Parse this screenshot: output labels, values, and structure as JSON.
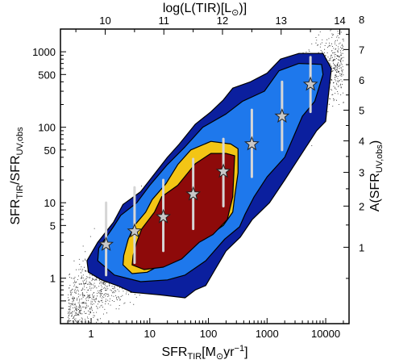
{
  "chart_data": {
    "type": "scatter",
    "xlabel": {
      "main": "SFR",
      "sub": "TIR",
      "rest": "[M",
      "sun_sub": "⊙",
      "unit": "yr",
      "sup": "−1",
      "close": "]"
    },
    "ylabel": {
      "main": "SFR",
      "sub1": "TIR",
      "mid": "/SFR",
      "sub2": "UV,obs"
    },
    "x2label": {
      "pre": "log(L(TIR)[L",
      "sun_sub": "⊙",
      "post": ")]"
    },
    "y2label": {
      "pre": "A(SFR",
      "sub": "UV,obs",
      "post": ")"
    },
    "x_scale": "log",
    "y_scale": "log",
    "xlim": [
      0.3,
      25000
    ],
    "ylim": [
      0.25,
      2000
    ],
    "x_ticks": [
      1,
      10,
      100,
      1000,
      10000
    ],
    "x_tick_labels": [
      "1",
      "10",
      "100",
      "1000",
      "10000"
    ],
    "y_ticks": [
      1,
      5,
      10,
      50,
      100,
      500,
      1000
    ],
    "y_tick_labels": [
      "1",
      "5",
      "10",
      "50",
      "100",
      "500",
      "1000"
    ],
    "x2_ticks": [
      10,
      11,
      12,
      13,
      14
    ],
    "x2_tick_labels": [
      "10",
      "11",
      "12",
      "13",
      "14"
    ],
    "y2_ticks": [
      1,
      2,
      3,
      4,
      5,
      6,
      7,
      8
    ],
    "y2_tick_labels": [
      "1",
      "2",
      "3",
      "4",
      "5",
      "6",
      "7",
      "8"
    ],
    "contour_colors": [
      "#0b1f9e",
      "#1e78ec",
      "#f3c515",
      "#8e0a0a"
    ],
    "stars": [
      {
        "x": 1.8,
        "y": 2.8,
        "y_lo": 1.1,
        "y_hi": 10
      },
      {
        "x": 5.5,
        "y": 4.2,
        "y_lo": 1.6,
        "y_hi": 16
      },
      {
        "x": 17,
        "y": 6.5,
        "y_lo": 2.3,
        "y_hi": 20
      },
      {
        "x": 55,
        "y": 13,
        "y_lo": 4.5,
        "y_hi": 38
      },
      {
        "x": 180,
        "y": 26,
        "y_lo": 9,
        "y_hi": 70
      },
      {
        "x": 550,
        "y": 60,
        "y_lo": 22,
        "y_hi": 170
      },
      {
        "x": 1800,
        "y": 140,
        "y_lo": 50,
        "y_hi": 400
      },
      {
        "x": 5500,
        "y": 370,
        "y_lo": 160,
        "y_hi": 850
      }
    ],
    "contours": [
      [
        [
          0.9,
          1.2
        ],
        [
          0.85,
          1.7
        ],
        [
          1.3,
          3.0
        ],
        [
          2.4,
          5.5
        ],
        [
          3.5,
          9.5
        ],
        [
          7,
          14
        ],
        [
          10,
          20
        ],
        [
          20,
          40
        ],
        [
          32,
          60
        ],
        [
          60,
          110
        ],
        [
          110,
          160
        ],
        [
          180,
          230
        ],
        [
          260,
          330
        ],
        [
          520,
          400
        ],
        [
          1000,
          520
        ],
        [
          1700,
          800
        ],
        [
          3500,
          950
        ],
        [
          9000,
          950
        ],
        [
          12500,
          600
        ],
        [
          11000,
          250
        ],
        [
          10000,
          120
        ],
        [
          7000,
          90
        ],
        [
          5000,
          60
        ],
        [
          2800,
          30
        ],
        [
          2000,
          20
        ],
        [
          1100,
          10
        ],
        [
          560,
          6
        ],
        [
          350,
          3.5
        ],
        [
          200,
          2.3
        ],
        [
          130,
          1.3
        ],
        [
          90,
          0.8
        ],
        [
          60,
          0.7
        ],
        [
          40,
          0.55
        ],
        [
          15,
          0.6
        ],
        [
          5,
          0.65
        ],
        [
          3,
          0.78
        ],
        [
          1.5,
          0.95
        ]
      ],
      [
        [
          1.3,
          1.7
        ],
        [
          1.35,
          2.5
        ],
        [
          2.4,
          4.8
        ],
        [
          3.2,
          6.8
        ],
        [
          6,
          10
        ],
        [
          10,
          17
        ],
        [
          20,
          32
        ],
        [
          40,
          55
        ],
        [
          80,
          100
        ],
        [
          200,
          150
        ],
        [
          380,
          220
        ],
        [
          900,
          300
        ],
        [
          1600,
          560
        ],
        [
          3500,
          700
        ],
        [
          8500,
          680
        ],
        [
          9000,
          500
        ],
        [
          6500,
          220
        ],
        [
          4000,
          140
        ],
        [
          2000,
          40
        ],
        [
          1000,
          22
        ],
        [
          600,
          12
        ],
        [
          420,
          7
        ],
        [
          340,
          4.8
        ],
        [
          190,
          3.3
        ],
        [
          90,
          1.7
        ],
        [
          40,
          1.1
        ],
        [
          20,
          0.95
        ],
        [
          7,
          0.9
        ],
        [
          2.5,
          1.1
        ]
      ],
      [
        [
          3.5,
          1.5
        ],
        [
          3.6,
          2.0
        ],
        [
          4.3,
          3.3
        ],
        [
          5.5,
          5.0
        ],
        [
          8.5,
          7.5
        ],
        [
          11,
          11
        ],
        [
          19,
          18
        ],
        [
          30,
          32
        ],
        [
          50,
          50
        ],
        [
          110,
          65
        ],
        [
          240,
          60
        ],
        [
          320,
          52
        ],
        [
          320,
          25
        ],
        [
          280,
          12
        ],
        [
          260,
          7.5
        ],
        [
          180,
          5.0
        ],
        [
          120,
          4.0
        ],
        [
          60,
          3.5
        ],
        [
          35,
          2.5
        ],
        [
          18,
          1.6
        ],
        [
          9,
          1.2
        ],
        [
          5,
          1.15
        ]
      ],
      [
        [
          5.0,
          1.5
        ],
        [
          5.2,
          2.0
        ],
        [
          6.0,
          3.0
        ],
        [
          7.3,
          4.5
        ],
        [
          12,
          7.5
        ],
        [
          16,
          12
        ],
        [
          30,
          17
        ],
        [
          60,
          33
        ],
        [
          110,
          45
        ],
        [
          200,
          45
        ],
        [
          280,
          42
        ],
        [
          260,
          12
        ],
        [
          210,
          6.0
        ],
        [
          120,
          3.8
        ],
        [
          70,
          3.0
        ],
        [
          35,
          1.8
        ],
        [
          17,
          1.4
        ],
        [
          8,
          1.3
        ]
      ]
    ]
  }
}
